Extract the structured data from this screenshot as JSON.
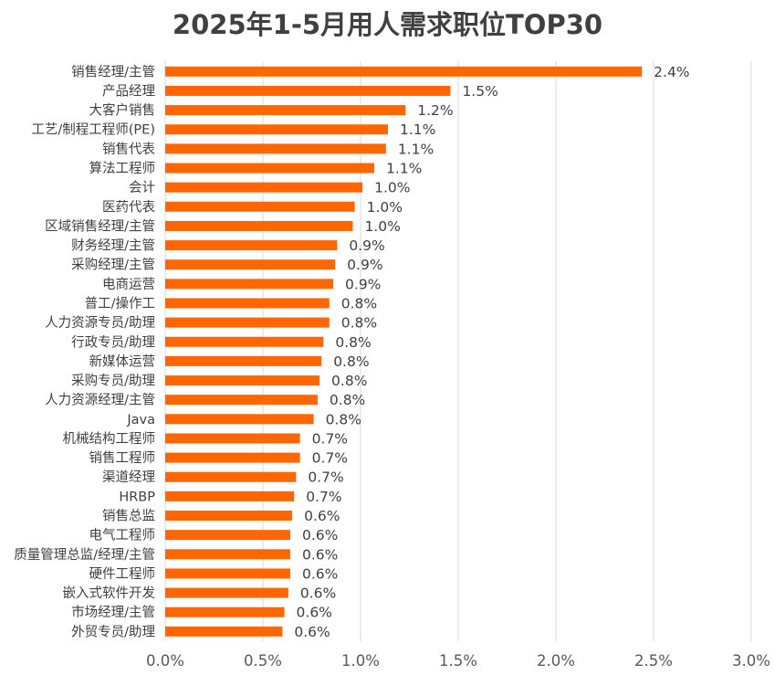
{
  "chart_data": {
    "type": "bar",
    "orientation": "horizontal",
    "title": "2025年1-5月用人需求职位TOP30",
    "xlabel": "",
    "ylabel": "",
    "xlim": [
      0,
      3.0
    ],
    "x_ticks": [
      "0.0%",
      "0.5%",
      "1.0%",
      "1.5%",
      "2.0%",
      "2.5%",
      "3.0%"
    ],
    "grid": true,
    "bar_color": "#FF6600",
    "grid_color": "#D9D9D9",
    "categories": [
      "销售经理/主管",
      "产品经理",
      "大客户销售",
      "工艺/制程工程师(PE)",
      "销售代表",
      "算法工程师",
      "会计",
      "医药代表",
      "区域销售经理/主管",
      "财务经理/主管",
      "采购经理/主管",
      "电商运营",
      "普工/操作工",
      "人力资源专员/助理",
      "行政专员/助理",
      "新媒体运营",
      "采购专员/助理",
      "人力资源经理/主管",
      "Java",
      "机械结构工程师",
      "销售工程师",
      "渠道经理",
      "HRBP",
      "销售总监",
      "电气工程师",
      "质量管理总监/经理/主管",
      "硬件工程师",
      "嵌入式软件开发",
      "市场经理/主管",
      "外贸专员/助理"
    ],
    "values": [
      2.44,
      1.46,
      1.23,
      1.14,
      1.13,
      1.07,
      1.01,
      0.97,
      0.96,
      0.88,
      0.87,
      0.86,
      0.84,
      0.84,
      0.81,
      0.8,
      0.79,
      0.78,
      0.76,
      0.69,
      0.69,
      0.67,
      0.66,
      0.65,
      0.64,
      0.64,
      0.64,
      0.63,
      0.61,
      0.6
    ],
    "data_labels": [
      "2.4%",
      "1.5%",
      "1.2%",
      "1.1%",
      "1.1%",
      "1.1%",
      "1.0%",
      "1.0%",
      "1.0%",
      "0.9%",
      "0.9%",
      "0.9%",
      "0.8%",
      "0.8%",
      "0.8%",
      "0.8%",
      "0.8%",
      "0.8%",
      "0.8%",
      "0.7%",
      "0.7%",
      "0.7%",
      "0.7%",
      "0.6%",
      "0.6%",
      "0.6%",
      "0.6%",
      "0.6%",
      "0.6%",
      "0.6%"
    ]
  }
}
